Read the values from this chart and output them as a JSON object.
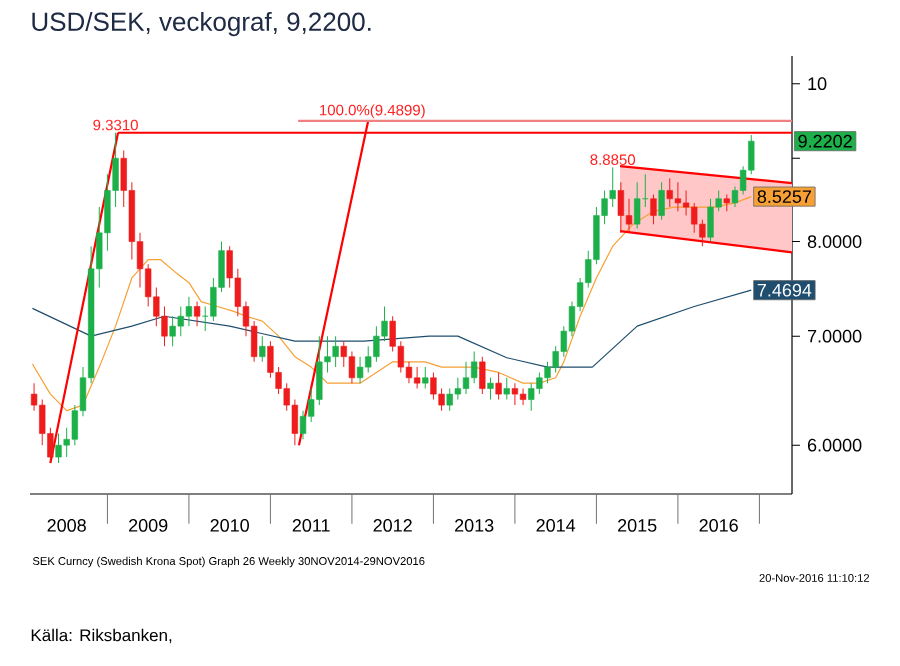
{
  "chart_data": {
    "type": "candlestick",
    "title": "USD/SEK, veckograf, 9,2200.",
    "log": "y",
    "xlim": [
      2008.05,
      2017.4
    ],
    "ylim": [
      5.6,
      10.4
    ],
    "xticks": [
      {
        "value": 2009,
        "label": null
      },
      {
        "value": 2010,
        "label": null
      },
      {
        "value": 2011,
        "label": null
      },
      {
        "value": 2012,
        "label": null
      },
      {
        "value": 2013,
        "label": null
      },
      {
        "value": 2014,
        "label": null
      },
      {
        "value": 2015,
        "label": null
      },
      {
        "value": 2016,
        "label": null
      },
      {
        "value": 2017,
        "label": null
      },
      {
        "value": 2008.5,
        "label": "2008"
      },
      {
        "value": 2009.5,
        "label": "2009"
      },
      {
        "value": 2010.5,
        "label": "2010"
      },
      {
        "value": 2011.5,
        "label": "2011"
      },
      {
        "value": 2012.5,
        "label": "2012"
      },
      {
        "value": 2013.5,
        "label": "2013"
      },
      {
        "value": 2014.5,
        "label": "2014"
      },
      {
        "value": 2015.5,
        "label": "2015"
      },
      {
        "value": 2016.5,
        "label": "2016"
      }
    ],
    "yticks": [
      {
        "value": 6,
        "label": "6.0000"
      },
      {
        "value": 7,
        "label": "7.0000"
      },
      {
        "value": 8,
        "label": "8.0000"
      },
      {
        "value": 9,
        "label": null
      },
      10
    ],
    "annotations": [
      {
        "text": "9.3310",
        "x": 2009.1,
        "y": 9.331
      },
      {
        "text": "100.0%(9.4899)",
        "x": 2012.25,
        "y": 9.4899
      },
      {
        "text": "8.8850",
        "x": 2015.2,
        "y": 8.885
      },
      "SEK Curncy (Swedish Krona Spot) Graph 26 Weekly 30NOV2014-29NOV2016",
      "20-Nov-2016 11:10:12",
      "Källa: Riksbanken,"
    ],
    "series": [
      {
        "x": [
          2008.1,
          2008.2,
          2008.3,
          2008.4,
          2008.5,
          2008.6,
          2008.7,
          2008.8,
          2008.9,
          2009.0,
          2009.1,
          2009.2,
          2009.3,
          2009.4,
          2009.5,
          2009.6,
          2009.7,
          2009.8,
          2009.9,
          2010.0,
          2010.1,
          2010.2,
          2010.3,
          2010.4,
          2010.5,
          2010.6,
          2010.7,
          2010.8,
          2010.9,
          2011.0,
          2011.1,
          2011.2,
          2011.3,
          2011.4,
          2011.5,
          2011.6,
          2011.7,
          2011.8,
          2011.9,
          2012.0,
          2012.1,
          2012.2,
          2012.3,
          2012.4,
          2012.5,
          2012.6,
          2012.7,
          2012.8,
          2012.9,
          2013.0,
          2013.1,
          2013.2,
          2013.3,
          2013.4,
          2013.5,
          2013.6,
          2013.7,
          2013.8,
          2013.9,
          2014.0,
          2014.1,
          2014.2,
          2014.3,
          2014.4,
          2014.5,
          2014.6,
          2014.7,
          2014.8,
          2014.9,
          2015.0,
          2015.1,
          2015.2,
          2015.3,
          2015.4,
          2015.5,
          2015.6,
          2015.7,
          2015.8,
          2015.9,
          2016.0,
          2016.1,
          2016.2,
          2016.3,
          2016.4,
          2016.5,
          2016.6,
          2016.7,
          2016.8,
          2016.9
        ],
        "ohlc": [
          [
            6.45,
            6.55,
            6.3,
            6.35
          ],
          [
            6.35,
            6.4,
            6.0,
            6.1
          ],
          [
            6.1,
            6.15,
            5.85,
            5.9
          ],
          [
            5.9,
            6.1,
            5.85,
            6.0
          ],
          [
            6.0,
            6.15,
            5.9,
            6.05
          ],
          [
            6.05,
            6.35,
            6.0,
            6.3
          ],
          [
            6.3,
            6.7,
            6.25,
            6.6
          ],
          [
            6.6,
            7.95,
            6.55,
            7.7
          ],
          [
            7.7,
            8.4,
            7.5,
            8.1
          ],
          [
            8.1,
            8.8,
            7.9,
            8.6
          ],
          [
            8.6,
            9.331,
            8.4,
            9.0
          ],
          [
            9.0,
            9.1,
            8.4,
            8.6
          ],
          [
            8.6,
            8.7,
            7.8,
            8.0
          ],
          [
            8.0,
            8.1,
            7.5,
            7.7
          ],
          [
            7.7,
            7.75,
            7.3,
            7.4
          ],
          [
            7.4,
            7.5,
            7.1,
            7.2
          ],
          [
            7.2,
            7.3,
            6.9,
            7.0
          ],
          [
            7.0,
            7.2,
            6.9,
            7.1
          ],
          [
            7.1,
            7.3,
            7.0,
            7.2
          ],
          [
            7.2,
            7.4,
            7.1,
            7.3
          ],
          [
            7.3,
            7.35,
            7.1,
            7.2
          ],
          [
            7.2,
            7.3,
            7.05,
            7.2
          ],
          [
            7.2,
            7.6,
            7.15,
            7.5
          ],
          [
            7.5,
            8.0,
            7.45,
            7.9
          ],
          [
            7.9,
            7.95,
            7.5,
            7.6
          ],
          [
            7.6,
            7.7,
            7.2,
            7.3
          ],
          [
            7.3,
            7.35,
            7.0,
            7.1
          ],
          [
            7.1,
            7.15,
            6.75,
            6.8
          ],
          [
            6.8,
            7.0,
            6.75,
            6.9
          ],
          [
            6.9,
            6.95,
            6.6,
            6.65
          ],
          [
            6.65,
            6.7,
            6.45,
            6.5
          ],
          [
            6.5,
            6.55,
            6.3,
            6.35
          ],
          [
            6.35,
            6.4,
            6.0,
            6.1
          ],
          [
            6.1,
            6.3,
            6.05,
            6.25
          ],
          [
            6.25,
            6.5,
            6.2,
            6.4
          ],
          [
            6.4,
            7.0,
            6.35,
            6.75
          ],
          [
            6.75,
            7.0,
            6.65,
            6.8
          ],
          [
            6.8,
            7.0,
            6.7,
            6.9
          ],
          [
            6.9,
            6.95,
            6.7,
            6.8
          ],
          [
            6.8,
            6.85,
            6.55,
            6.6
          ],
          [
            6.6,
            6.8,
            6.55,
            6.7
          ],
          [
            6.7,
            6.9,
            6.65,
            6.8
          ],
          [
            6.8,
            7.1,
            6.75,
            7.0
          ],
          [
            7.0,
            7.3,
            6.95,
            7.15
          ],
          [
            7.15,
            7.2,
            6.85,
            6.9
          ],
          [
            6.9,
            6.95,
            6.65,
            6.7
          ],
          [
            6.7,
            6.75,
            6.55,
            6.6
          ],
          [
            6.6,
            6.7,
            6.5,
            6.55
          ],
          [
            6.55,
            6.7,
            6.5,
            6.6
          ],
          [
            6.6,
            6.65,
            6.4,
            6.45
          ],
          [
            6.45,
            6.5,
            6.3,
            6.35
          ],
          [
            6.35,
            6.5,
            6.3,
            6.45
          ],
          [
            6.45,
            6.6,
            6.4,
            6.5
          ],
          [
            6.5,
            6.75,
            6.45,
            6.6
          ],
          [
            6.6,
            6.85,
            6.55,
            6.75
          ],
          [
            6.75,
            6.8,
            6.45,
            6.5
          ],
          [
            6.5,
            6.6,
            6.4,
            6.55
          ],
          [
            6.55,
            6.65,
            6.4,
            6.45
          ],
          [
            6.45,
            6.6,
            6.4,
            6.5
          ],
          [
            6.5,
            6.55,
            6.35,
            6.45
          ],
          [
            6.45,
            6.5,
            6.35,
            6.4
          ],
          [
            6.4,
            6.55,
            6.3,
            6.5
          ],
          [
            6.5,
            6.65,
            6.45,
            6.6
          ],
          [
            6.6,
            6.75,
            6.55,
            6.7
          ],
          [
            6.7,
            6.9,
            6.65,
            6.85
          ],
          [
            6.85,
            7.1,
            6.8,
            7.05
          ],
          [
            7.05,
            7.35,
            7.0,
            7.3
          ],
          [
            7.3,
            7.6,
            7.25,
            7.55
          ],
          [
            7.55,
            7.9,
            7.5,
            7.8
          ],
          [
            7.8,
            8.4,
            7.75,
            8.3
          ],
          [
            8.3,
            8.6,
            8.2,
            8.5
          ],
          [
            8.5,
            8.885,
            8.4,
            8.6
          ],
          [
            8.6,
            8.7,
            8.1,
            8.3
          ],
          [
            8.3,
            8.5,
            8.1,
            8.2
          ],
          [
            8.2,
            8.7,
            8.15,
            8.5
          ],
          [
            8.5,
            8.8,
            8.4,
            8.5
          ],
          [
            8.5,
            8.55,
            8.2,
            8.3
          ],
          [
            8.3,
            8.7,
            8.25,
            8.6
          ],
          [
            8.6,
            8.75,
            8.4,
            8.5
          ],
          [
            8.5,
            8.7,
            8.35,
            8.45
          ],
          [
            8.45,
            8.6,
            8.3,
            8.4
          ],
          [
            8.4,
            8.45,
            8.1,
            8.2
          ],
          [
            8.2,
            8.25,
            7.95,
            8.05
          ],
          [
            8.05,
            8.5,
            8.0,
            8.4
          ],
          [
            8.4,
            8.6,
            8.35,
            8.5
          ],
          [
            8.5,
            8.55,
            8.35,
            8.45
          ],
          [
            8.45,
            8.65,
            8.4,
            8.6
          ],
          [
            8.6,
            8.9,
            8.55,
            8.85
          ],
          [
            8.85,
            9.3,
            8.8,
            9.2202
          ]
        ],
        "colors": [
          "#ee1c1c",
          "#ee1c1c",
          "#ee1c1c",
          "#1db04a",
          "#1db04a",
          "#1db04a",
          "#1db04a",
          "#1db04a",
          "#1db04a",
          "#1db04a",
          "#1db04a",
          "#ee1c1c",
          "#ee1c1c",
          "#ee1c1c",
          "#ee1c1c",
          "#ee1c1c",
          "#ee1c1c",
          "#1db04a",
          "#1db04a",
          "#1db04a",
          "#ee1c1c",
          "#1db04a",
          "#1db04a",
          "#1db04a",
          "#ee1c1c",
          "#ee1c1c",
          "#ee1c1c",
          "#ee1c1c",
          "#1db04a",
          "#ee1c1c",
          "#ee1c1c",
          "#ee1c1c",
          "#ee1c1c",
          "#1db04a",
          "#1db04a",
          "#1db04a",
          "#1db04a",
          "#1db04a",
          "#ee1c1c",
          "#ee1c1c",
          "#1db04a",
          "#1db04a",
          "#1db04a",
          "#1db04a",
          "#ee1c1c",
          "#ee1c1c",
          "#ee1c1c",
          "#ee1c1c",
          "#1db04a",
          "#ee1c1c",
          "#ee1c1c",
          "#1db04a",
          "#1db04a",
          "#1db04a",
          "#1db04a",
          "#ee1c1c",
          "#1db04a",
          "#ee1c1c",
          "#1db04a",
          "#ee1c1c",
          "#ee1c1c",
          "#1db04a",
          "#1db04a",
          "#1db04a",
          "#1db04a",
          "#1db04a",
          "#1db04a",
          "#1db04a",
          "#1db04a",
          "#1db04a",
          "#1db04a",
          "#1db04a",
          "#ee1c1c",
          "#ee1c1c",
          "#1db04a",
          "#1db04a",
          "#ee1c1c",
          "#1db04a",
          "#ee1c1c",
          "#ee1c1c",
          "#ee1c1c",
          "#ee1c1c",
          "#ee1c1c",
          "#1db04a",
          "#1db04a",
          "#ee1c1c",
          "#1db04a",
          "#1db04a",
          "#1db04a"
        ],
        "value_labels": [
          null,
          null,
          null,
          null,
          null,
          null,
          null,
          null,
          null,
          null,
          null,
          null,
          null,
          null,
          null,
          null,
          null,
          null,
          null,
          null,
          null,
          null,
          null,
          null,
          null,
          null,
          null,
          null,
          null,
          null,
          null,
          null,
          null,
          null,
          null,
          null,
          null,
          null,
          null,
          null,
          null,
          null,
          null,
          null,
          null,
          null,
          null,
          null,
          null,
          null,
          null,
          null,
          null,
          null,
          null,
          null,
          null,
          null,
          null,
          null,
          null,
          null,
          null,
          null,
          null,
          null,
          null,
          null,
          null,
          null,
          null,
          null,
          null,
          null,
          null,
          null,
          null,
          null,
          null,
          null,
          null,
          null,
          null,
          null,
          null,
          null,
          null,
          null,
          "9.2202"
        ]
      },
      {
        "type": "line",
        "color": "#f7a035",
        "x": [
          2008.08,
          2008.3,
          2008.5,
          2008.7,
          2008.9,
          2009.1,
          2009.3,
          2009.5,
          2009.65,
          2009.85,
          2010.0,
          2010.15,
          2010.35,
          2010.55,
          2010.7,
          2010.9,
          2011.1,
          2011.3,
          2011.5,
          2011.7,
          2011.9,
          2012.1,
          2012.3,
          2012.5,
          2012.7,
          2012.9,
          2013.1,
          2013.3,
          2013.5,
          2013.8,
          2014.1,
          2014.3,
          2014.5,
          2014.6,
          2014.8,
          2015.0,
          2015.2,
          2015.45,
          2015.7,
          2015.95,
          2016.2,
          2016.45,
          2016.7,
          2016.9
        ],
        "values": [
          6.73,
          6.45,
          6.3,
          6.35,
          6.7,
          7.1,
          7.6,
          7.8,
          7.8,
          7.65,
          7.55,
          7.35,
          7.3,
          7.25,
          7.2,
          7.15,
          7.0,
          6.8,
          6.7,
          6.55,
          6.55,
          6.55,
          6.65,
          6.75,
          6.75,
          6.75,
          6.7,
          6.7,
          6.7,
          6.65,
          6.55,
          6.55,
          6.6,
          6.75,
          7.2,
          7.6,
          7.95,
          8.2,
          8.35,
          8.4,
          8.4,
          8.4,
          8.45,
          8.5257
        ],
        "value_labels": [
          null,
          null,
          null,
          null,
          null,
          null,
          null,
          null,
          null,
          null,
          null,
          null,
          null,
          null,
          null,
          null,
          null,
          null,
          null,
          null,
          null,
          null,
          null,
          null,
          null,
          null,
          null,
          null,
          null,
          null,
          null,
          null,
          null,
          null,
          null,
          null,
          null,
          null,
          null,
          null,
          null,
          null,
          null,
          "8.5257"
        ]
      },
      {
        "type": "line",
        "color": "#1f4e6e",
        "x": [
          2008.08,
          2008.8,
          2009.3,
          2009.7,
          2010.5,
          2011.3,
          2012.15,
          2012.95,
          2013.3,
          2013.9,
          2014.4,
          2014.95,
          2015.5,
          2016.2,
          2016.9
        ],
        "values": [
          7.28,
          7.0,
          7.1,
          7.2,
          7.1,
          6.95,
          6.95,
          7.0,
          7.0,
          6.79,
          6.7,
          6.7,
          7.1,
          7.3,
          7.4694
        ],
        "value_labels": [
          null,
          null,
          null,
          null,
          null,
          null,
          null,
          null,
          null,
          null,
          null,
          null,
          null,
          null,
          "7.4694"
        ]
      },
      {
        "type": "line",
        "color": "#ff0000",
        "x": [
          2008.3,
          2009.13
        ],
        "values": [
          5.85,
          9.331
        ]
      },
      {
        "type": "line",
        "color": "#ff0000",
        "x": [
          2011.35,
          2012.2
        ],
        "values": [
          6.0,
          9.4899
        ]
      },
      {
        "type": "line",
        "color": "#ff0000",
        "x": [
          2009.13,
          2017.4
        ],
        "values": [
          9.331,
          9.331
        ]
      },
      {
        "type": "line",
        "color": "#f08080",
        "x": [
          2011.34,
          2017.4
        ],
        "values": [
          9.4899,
          9.4899
        ]
      },
      {
        "type": "line",
        "color": "#ff0000",
        "x": [
          2015.29,
          2017.4
        ],
        "values": [
          8.9,
          8.69
        ],
        "lower": [
          8.12,
          7.88
        ],
        "upper": [
          8.9,
          8.69
        ]
      },
      {
        "type": "line",
        "color": "#ff0000",
        "x": [
          2015.29,
          2017.4
        ],
        "values": [
          8.12,
          7.88
        ]
      }
    ]
  }
}
